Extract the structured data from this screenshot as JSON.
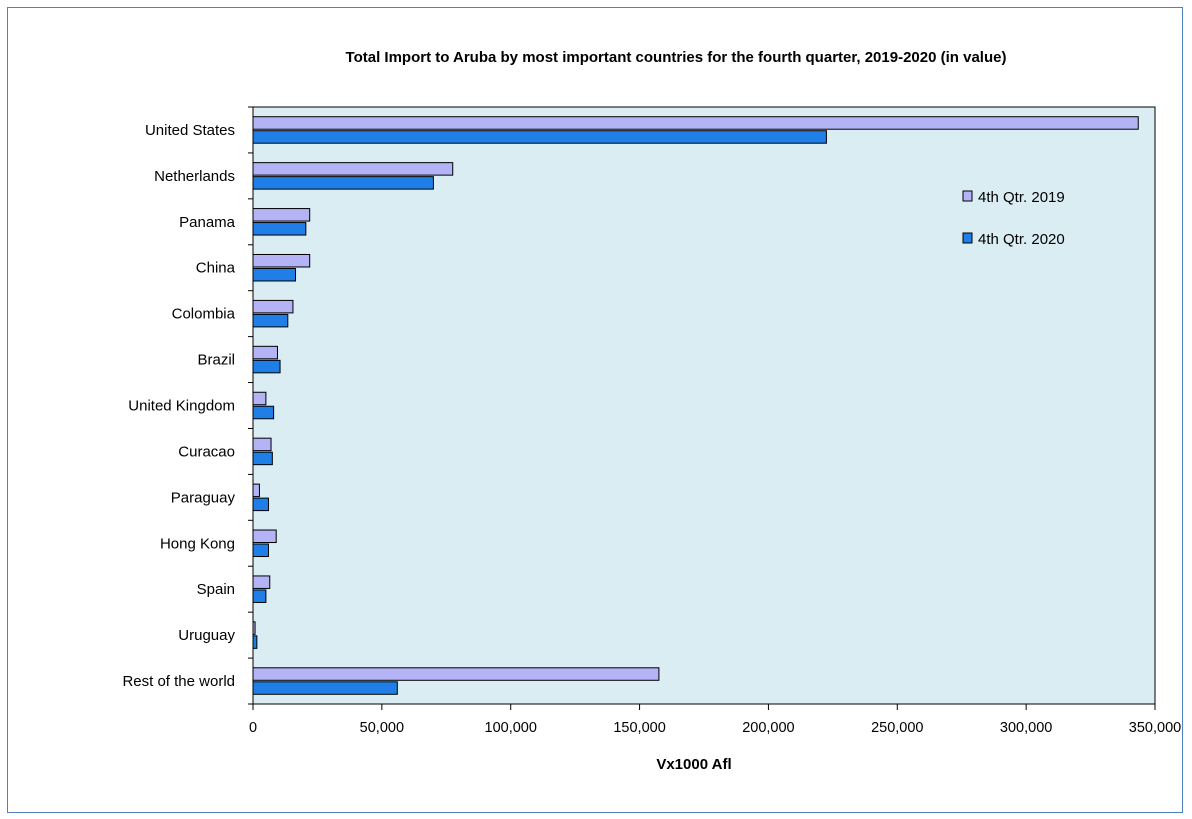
{
  "chart_data": {
    "type": "bar",
    "orientation": "horizontal",
    "title": "Total Import to Aruba  by most important countries  for the fourth  quarter, 2019-2020 (in value)",
    "xlabel": "Vx1000 Afl",
    "ylabel": "",
    "xlim": [
      0,
      350000
    ],
    "x_ticks": [
      "0",
      "50,000",
      "100,000",
      "150,000",
      "200,000",
      "250,000",
      "300,000",
      "350,000"
    ],
    "categories": [
      "United States",
      "Netherlands",
      "Panama",
      "China",
      "Colombia",
      "Brazil",
      "United Kingdom",
      "Curacao",
      "Paraguay",
      "Hong Kong",
      "Spain",
      "Uruguay",
      "Rest of the world"
    ],
    "series": [
      {
        "name": "4th Qtr. 2019",
        "color": "#b3b3f5",
        "values": [
          343500,
          77500,
          22000,
          22000,
          15500,
          9500,
          5000,
          7000,
          2500,
          9000,
          6500,
          800,
          157500
        ]
      },
      {
        "name": "4th Qtr. 2020",
        "color": "#1f7fe6",
        "values": [
          222500,
          70000,
          20500,
          16500,
          13500,
          10500,
          8000,
          7500,
          6000,
          6000,
          5000,
          1500,
          56000
        ]
      }
    ],
    "legend_position": "right",
    "plot_background": "#daedf3",
    "grid": false
  }
}
